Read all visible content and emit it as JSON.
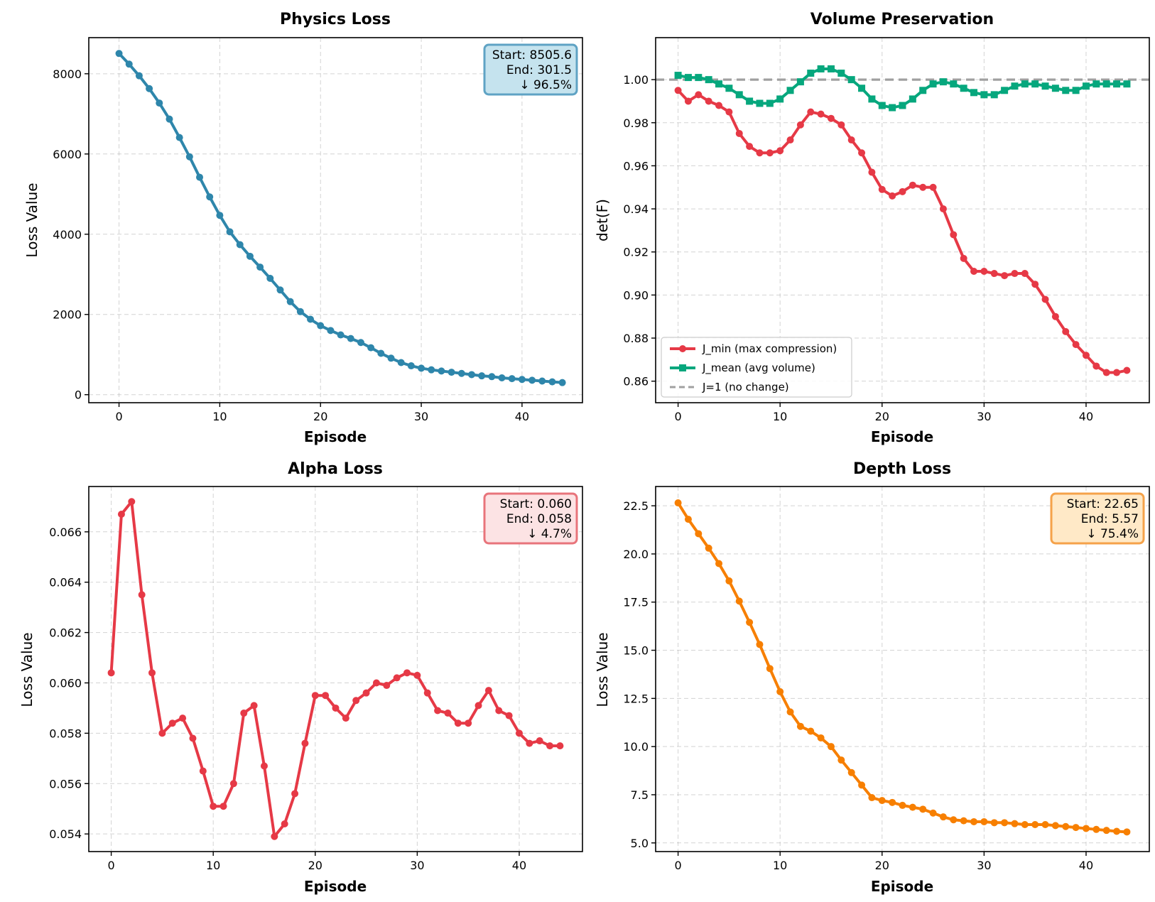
{
  "chart_data": [
    {
      "id": "physics",
      "type": "line",
      "title": "Physics Loss",
      "xlabel": "Episode",
      "ylabel": "Loss Value",
      "xlim": [
        -3,
        46
      ],
      "ylim": [
        -200,
        8900
      ],
      "xticks": [
        0,
        10,
        20,
        30,
        40
      ],
      "yticks": [
        0,
        2000,
        4000,
        6000,
        8000
      ],
      "ytick_labels": [
        "0",
        "2000",
        "4000",
        "6000",
        "8000"
      ],
      "grid": true,
      "series": [
        {
          "name": "Physics Loss",
          "color": "#2E86AB",
          "marker": "circle",
          "values": [
            8505.6,
            8240,
            7950,
            7630,
            7270,
            6870,
            6410,
            5930,
            5420,
            4930,
            4470,
            4060,
            3740,
            3450,
            3180,
            2900,
            2610,
            2320,
            2070,
            1880,
            1720,
            1600,
            1490,
            1400,
            1300,
            1170,
            1030,
            910,
            800,
            720,
            660,
            620,
            590,
            560,
            530,
            500,
            470,
            450,
            420,
            400,
            380,
            360,
            340,
            320,
            301.5
          ]
        }
      ],
      "annotation": {
        "lines": [
          "Start: 8505.6",
          "End: 301.5",
          "↓ 96.5%"
        ],
        "placement": "top-right",
        "fill": "#C5E3EE",
        "edge": "#5FA3C4"
      }
    },
    {
      "id": "volume",
      "type": "line",
      "title": "Volume Preservation",
      "xlabel": "Episode",
      "ylabel": "det(F)",
      "xlim": [
        -2.2,
        46.2
      ],
      "ylim": [
        0.85,
        1.0195
      ],
      "xticks": [
        0,
        10,
        20,
        30,
        40
      ],
      "yticks": [
        0.86,
        0.88,
        0.9,
        0.92,
        0.94,
        0.96,
        0.98,
        1.0
      ],
      "ytick_labels": [
        "0.86",
        "0.88",
        "0.90",
        "0.92",
        "0.94",
        "0.96",
        "0.98",
        "1.00"
      ],
      "grid": true,
      "series": [
        {
          "name": "J_min (max compression)",
          "color": "#E63946",
          "marker": "circle",
          "values": [
            0.995,
            0.99,
            0.993,
            0.99,
            0.988,
            0.985,
            0.975,
            0.969,
            0.966,
            0.966,
            0.967,
            0.972,
            0.979,
            0.985,
            0.984,
            0.982,
            0.979,
            0.972,
            0.966,
            0.957,
            0.949,
            0.946,
            0.948,
            0.951,
            0.95,
            0.95,
            0.94,
            0.928,
            0.917,
            0.911,
            0.911,
            0.91,
            0.909,
            0.91,
            0.91,
            0.905,
            0.898,
            0.89,
            0.883,
            0.877,
            0.872,
            0.867,
            0.864,
            0.864,
            0.865
          ]
        },
        {
          "name": "J_mean (avg volume)",
          "color": "#06A77D",
          "marker": "square",
          "values": [
            1.002,
            1.001,
            1.001,
            1.0,
            0.998,
            0.996,
            0.993,
            0.99,
            0.989,
            0.989,
            0.991,
            0.995,
            0.999,
            1.003,
            1.005,
            1.005,
            1.003,
            1.0,
            0.996,
            0.991,
            0.988,
            0.987,
            0.988,
            0.991,
            0.995,
            0.998,
            0.999,
            0.998,
            0.996,
            0.994,
            0.993,
            0.993,
            0.995,
            0.997,
            0.998,
            0.998,
            0.997,
            0.996,
            0.995,
            0.995,
            0.997,
            0.998,
            0.998,
            0.998,
            0.998
          ]
        }
      ],
      "reference_line": {
        "name": "J=1 (no change)",
        "y": 1.0,
        "color": "#A0A0A0"
      },
      "legend": {
        "placement": "lower-left",
        "entries": [
          "J_min (max compression)",
          "J_mean (avg volume)",
          "J=1 (no change)"
        ]
      }
    },
    {
      "id": "alpha",
      "type": "line",
      "title": "Alpha Loss",
      "xlabel": "Episode",
      "ylabel": "Loss Value",
      "xlim": [
        -2.2,
        46.2
      ],
      "ylim": [
        0.0533,
        0.0678
      ],
      "xticks": [
        0,
        10,
        20,
        30,
        40
      ],
      "yticks": [
        0.054,
        0.056,
        0.058,
        0.06,
        0.062,
        0.064,
        0.066
      ],
      "ytick_labels": [
        "0.054",
        "0.056",
        "0.058",
        "0.060",
        "0.062",
        "0.064",
        "0.066"
      ],
      "grid": true,
      "series": [
        {
          "name": "Alpha Loss",
          "color": "#E63946",
          "marker": "circle",
          "values": [
            0.0604,
            0.0667,
            0.0672,
            0.0635,
            0.0604,
            0.058,
            0.0584,
            0.0586,
            0.0578,
            0.0565,
            0.0551,
            0.0551,
            0.056,
            0.0588,
            0.0591,
            0.0567,
            0.0539,
            0.0544,
            0.0556,
            0.0576,
            0.0595,
            0.0595,
            0.059,
            0.0586,
            0.0593,
            0.0596,
            0.06,
            0.0599,
            0.0602,
            0.0604,
            0.0603,
            0.0596,
            0.0589,
            0.0588,
            0.0584,
            0.0584,
            0.0591,
            0.0597,
            0.0589,
            0.0587,
            0.058,
            0.0576,
            0.0577,
            0.0575,
            0.0575
          ]
        }
      ],
      "annotation": {
        "lines": [
          "Start: 0.060",
          "End: 0.058",
          "↓ 4.7%"
        ],
        "placement": "top-right",
        "fill": "#FCE3E4",
        "edge": "#E8747B"
      }
    },
    {
      "id": "depth",
      "type": "line",
      "title": "Depth Loss",
      "xlabel": "Episode",
      "ylabel": "Loss Value",
      "xlim": [
        -2.2,
        46.2
      ],
      "ylim": [
        4.55,
        23.5
      ],
      "xticks": [
        0,
        10,
        20,
        30,
        40
      ],
      "yticks": [
        5.0,
        7.5,
        10.0,
        12.5,
        15.0,
        17.5,
        20.0,
        22.5
      ],
      "ytick_labels": [
        "5.0",
        "7.5",
        "10.0",
        "12.5",
        "15.0",
        "17.5",
        "20.0",
        "22.5"
      ],
      "grid": true,
      "series": [
        {
          "name": "Depth Loss",
          "color": "#F77F00",
          "marker": "circle",
          "values": [
            22.65,
            21.8,
            21.05,
            20.3,
            19.5,
            18.6,
            17.55,
            16.45,
            15.3,
            14.05,
            12.85,
            11.8,
            11.05,
            10.8,
            10.45,
            10.0,
            9.3,
            8.65,
            8.0,
            7.35,
            7.2,
            7.1,
            6.95,
            6.85,
            6.75,
            6.55,
            6.35,
            6.2,
            6.15,
            6.1,
            6.1,
            6.05,
            6.05,
            6.0,
            5.95,
            5.95,
            5.95,
            5.9,
            5.85,
            5.8,
            5.75,
            5.7,
            5.65,
            5.6,
            5.57
          ]
        }
      ],
      "annotation": {
        "lines": [
          "Start: 22.65",
          "End: 5.57",
          "↓ 75.4%"
        ],
        "placement": "top-right",
        "fill": "#FFE9C7",
        "edge": "#F5A24A"
      }
    }
  ]
}
